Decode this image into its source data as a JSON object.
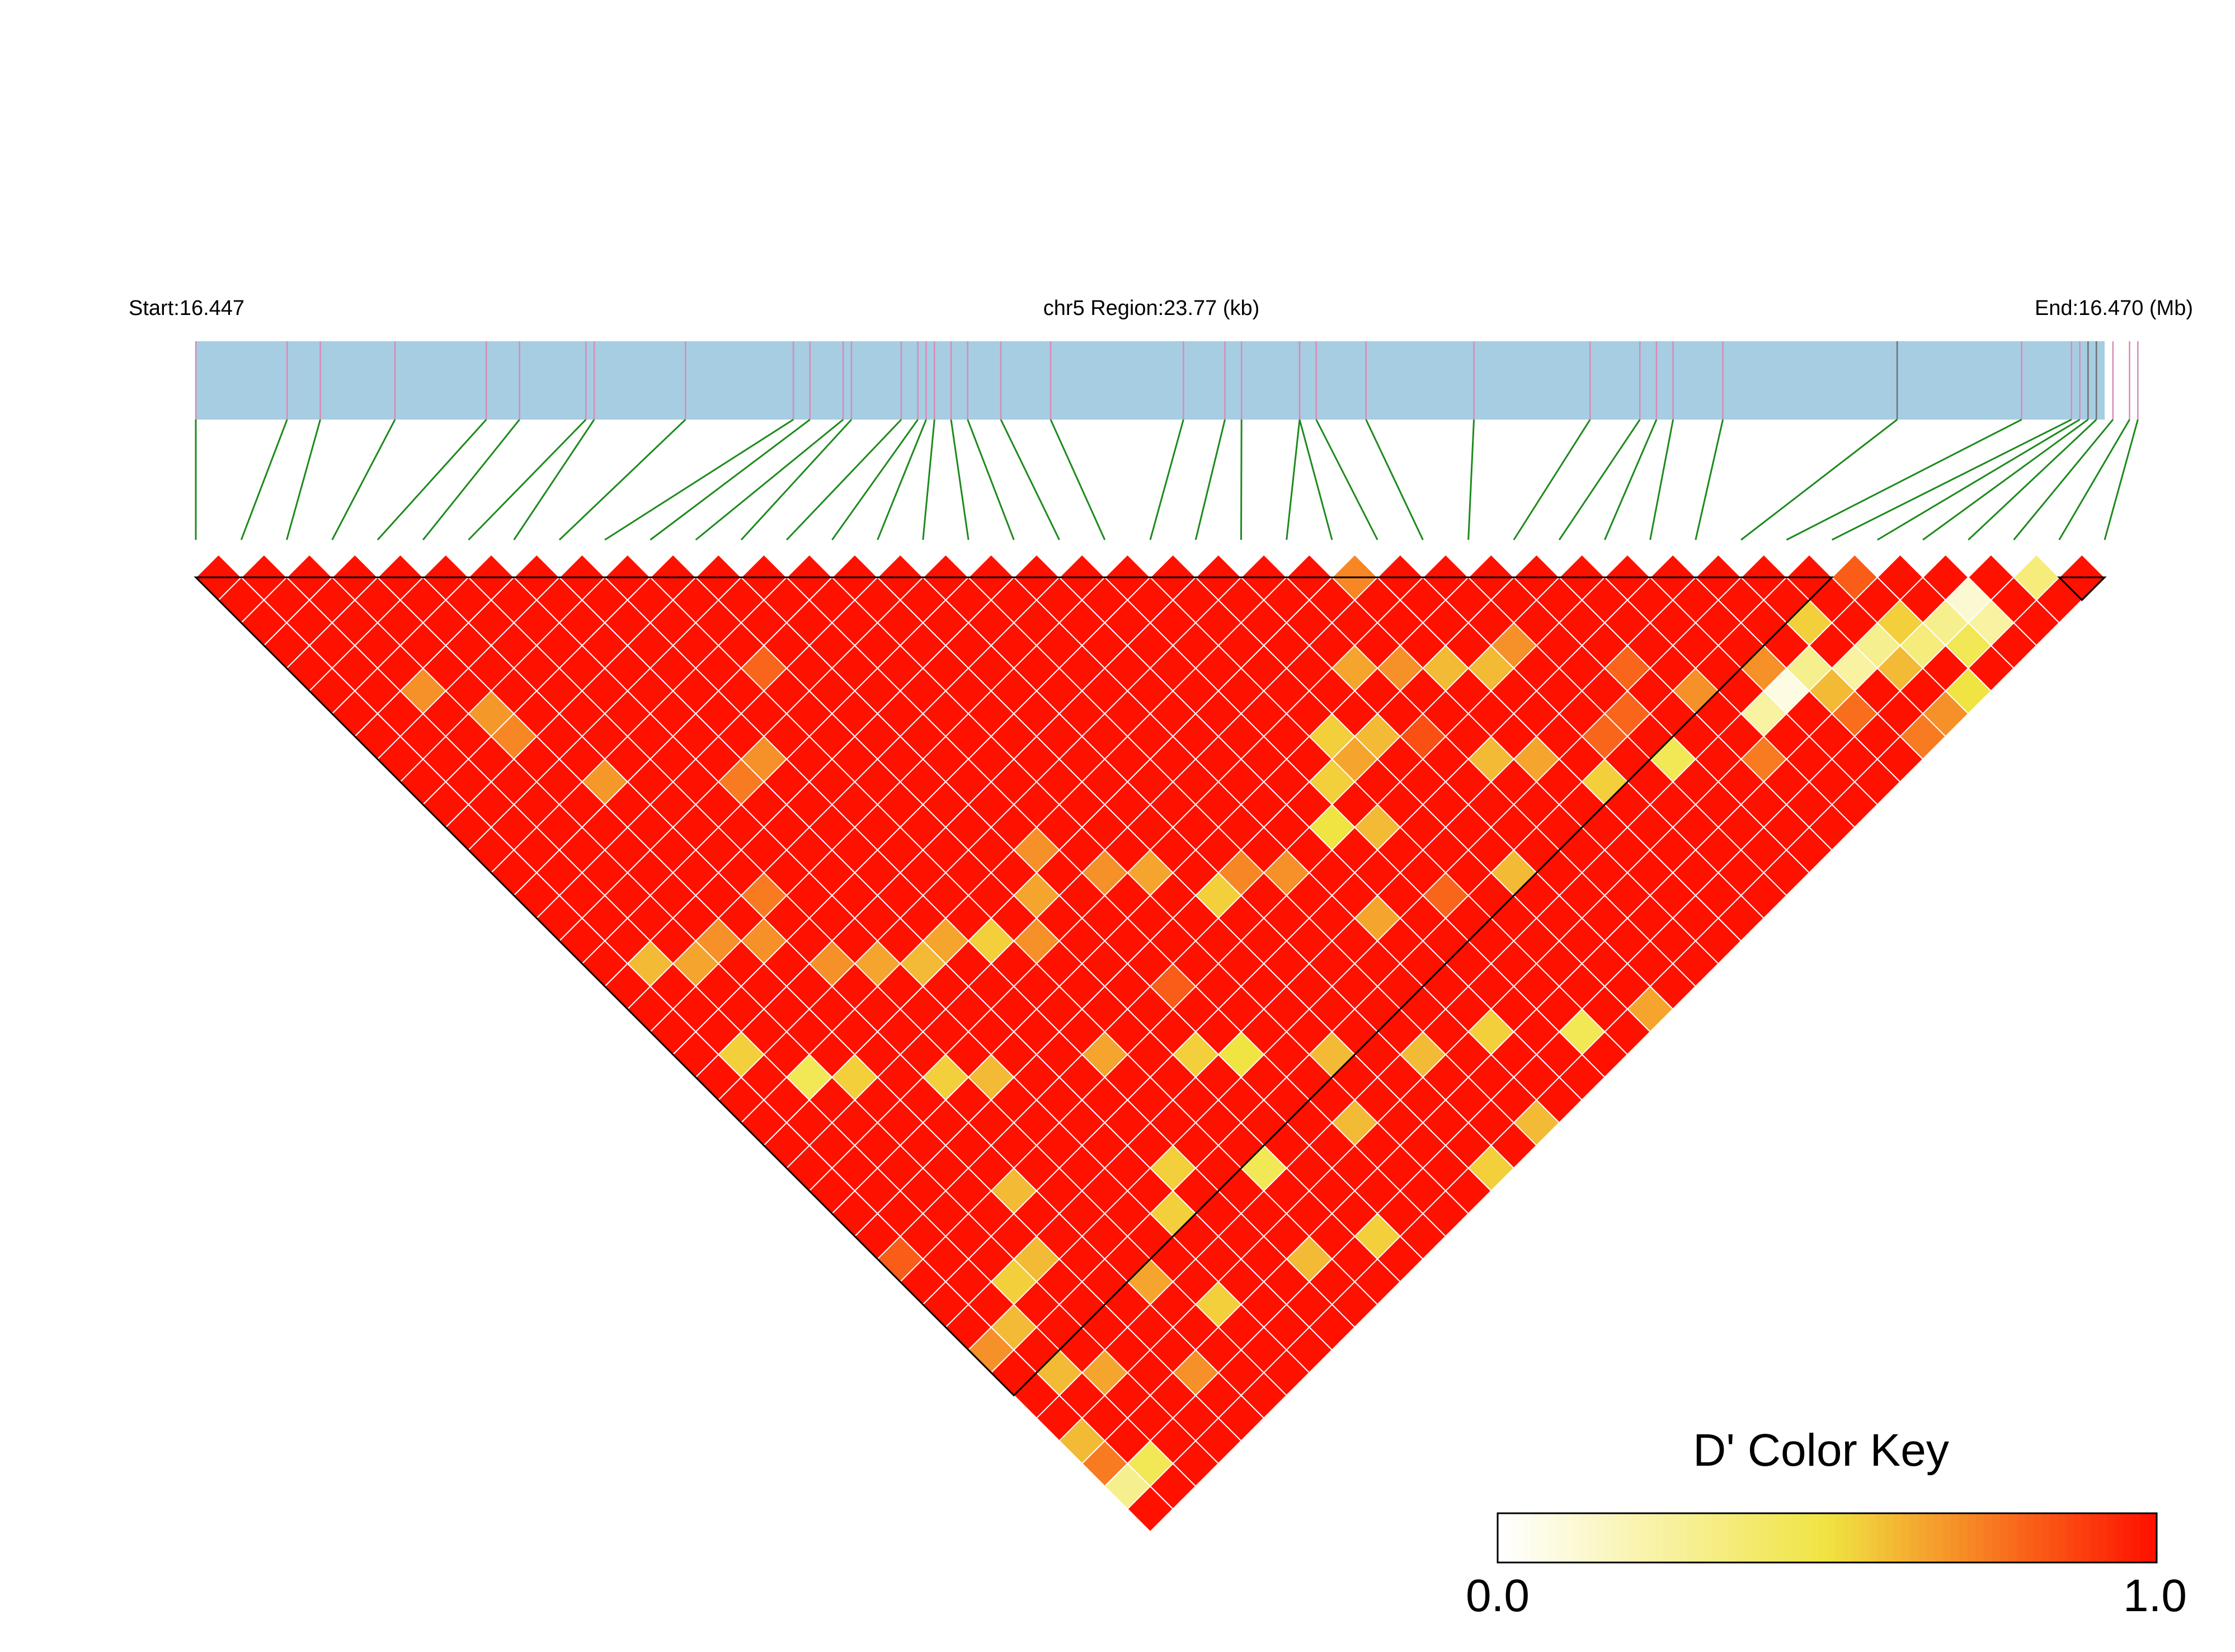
{
  "header": {
    "start_label": "Start:16.447",
    "region_label": "chr5 Region:23.77 (kb)",
    "end_label": "End:16.470 (Mb)"
  },
  "colors": {
    "gene_band": "#a6cde2",
    "snp_tick_pink": "#d98ab6",
    "snp_tick_gray": "#6f6f6f",
    "connector": "#1d8a1d",
    "ld_high": "#ff1100",
    "ld_mid": "#f0e442",
    "ld_low": "#ffffff",
    "grid": "#ffffff",
    "block_outline": "#000000"
  },
  "color_key": {
    "title": "D' Color Key",
    "min_label": "0.0",
    "max_label": "1.0",
    "min": 0.0,
    "max": 1.0
  },
  "chart_data": {
    "type": "heatmap",
    "chart_subtype": "linkage-disequilibrium triangle (D')",
    "chromosome": "chr5",
    "start_mb": 16.447,
    "end_mb": 16.47,
    "region_kb": 23.77,
    "n_snps": 43,
    "snp_positions_mb": [
      16.447,
      16.4481,
      16.4485,
      16.4494,
      16.4505,
      16.4509,
      16.4517,
      16.4518,
      16.4529,
      16.4542,
      16.4544,
      16.4548,
      16.4549,
      16.4555,
      16.4557,
      16.4558,
      16.4559,
      16.4561,
      16.4563,
      16.4567,
      16.4573,
      16.4589,
      16.4594,
      16.4596,
      16.4603,
      16.4603,
      16.4605,
      16.4611,
      16.4624,
      16.4638,
      16.4644,
      16.4646,
      16.4648,
      16.4654,
      16.4675,
      16.469,
      16.4696,
      16.4697,
      16.4698,
      16.4699,
      16.4701,
      16.4703,
      16.4704
    ],
    "gray_tick_snps": [
      35,
      39,
      40
    ],
    "haplotype_blocks": [
      {
        "first_snp": 1,
        "last_snp": 37
      },
      {
        "first_snp": 42,
        "last_snp": 43
      }
    ],
    "metric": "D'",
    "default_dprime": 1.0,
    "dprime_cells": [
      {
        "i": 25,
        "j": 25,
        "d": 0.72
      },
      {
        "i": 36,
        "j": 36,
        "d": 0.82
      },
      {
        "i": 40,
        "j": 40,
        "d": 0.35
      },
      {
        "i": 38,
        "j": 39,
        "d": 0.12
      },
      {
        "i": 37,
        "j": 39,
        "d": 0.3
      },
      {
        "i": 38,
        "j": 40,
        "d": 0.25
      },
      {
        "i": 36,
        "j": 39,
        "d": 0.35
      },
      {
        "i": 37,
        "j": 40,
        "d": 0.45
      },
      {
        "i": 36,
        "j": 38,
        "d": 0.55
      },
      {
        "i": 35,
        "j": 39,
        "d": 0.6
      },
      {
        "i": 35,
        "j": 38,
        "d": 0.3
      },
      {
        "i": 34,
        "j": 38,
        "d": 0.25
      },
      {
        "i": 33,
        "j": 38,
        "d": 0.6
      },
      {
        "i": 32,
        "j": 37,
        "d": 0.08
      },
      {
        "i": 31,
        "j": 37,
        "d": 0.25
      },
      {
        "i": 33,
        "j": 37,
        "d": 0.3
      },
      {
        "i": 32,
        "j": 36,
        "d": 0.7
      },
      {
        "i": 34,
        "j": 36,
        "d": 0.55
      },
      {
        "i": 36,
        "j": 41,
        "d": 0.5
      },
      {
        "i": 37,
        "j": 42,
        "d": 0.7
      },
      {
        "i": 35,
        "j": 41,
        "d": 0.7
      },
      {
        "i": 30,
        "j": 35,
        "d": 0.7
      },
      {
        "i": 28,
        "j": 36,
        "d": 0.45
      },
      {
        "i": 27,
        "j": 30,
        "d": 0.7
      },
      {
        "i": 23,
        "j": 27,
        "d": 0.65
      },
      {
        "i": 24,
        "j": 28,
        "d": 0.7
      },
      {
        "i": 25,
        "j": 29,
        "d": 0.6
      },
      {
        "i": 26,
        "j": 30,
        "d": 0.6
      },
      {
        "i": 21,
        "j": 28,
        "d": 0.55
      },
      {
        "i": 22,
        "j": 29,
        "d": 0.6
      },
      {
        "i": 20,
        "j": 29,
        "d": 0.55
      },
      {
        "i": 21,
        "j": 29,
        "d": 0.65
      },
      {
        "i": 19,
        "j": 30,
        "d": 0.5
      },
      {
        "i": 20,
        "j": 31,
        "d": 0.6
      },
      {
        "i": 24,
        "j": 32,
        "d": 0.6
      },
      {
        "i": 25,
        "j": 33,
        "d": 0.65
      },
      {
        "i": 26,
        "j": 35,
        "d": 0.55
      },
      {
        "i": 22,
        "j": 35,
        "d": 0.6
      },
      {
        "i": 18,
        "j": 33,
        "d": 0.65
      },
      {
        "i": 17,
        "j": 30,
        "d": 0.7
      },
      {
        "i": 16,
        "j": 29,
        "d": 0.72
      },
      {
        "i": 15,
        "j": 29,
        "d": 0.55
      },
      {
        "i": 14,
        "j": 27,
        "d": 0.65
      },
      {
        "i": 12,
        "j": 24,
        "d": 0.7
      },
      {
        "i": 13,
        "j": 26,
        "d": 0.7
      },
      {
        "i": 11,
        "j": 25,
        "d": 0.65
      },
      {
        "i": 9,
        "j": 25,
        "d": 0.55
      },
      {
        "i": 8,
        "j": 24,
        "d": 0.65
      },
      {
        "i": 10,
        "j": 26,
        "d": 0.7
      },
      {
        "i": 7,
        "j": 24,
        "d": 0.6
      },
      {
        "i": 6,
        "j": 23,
        "d": 0.65
      },
      {
        "i": 5,
        "j": 22,
        "d": 0.7
      },
      {
        "i": 4,
        "j": 20,
        "d": 0.7
      },
      {
        "i": 3,
        "j": 19,
        "d": 0.7
      },
      {
        "i": 2,
        "j": 19,
        "d": 0.65
      },
      {
        "i": 1,
        "j": 18,
        "d": 0.6
      },
      {
        "i": 3,
        "j": 25,
        "d": 0.55
      },
      {
        "i": 2,
        "j": 24,
        "d": 0.45
      },
      {
        "i": 1,
        "j": 22,
        "d": 0.55
      },
      {
        "i": 6,
        "j": 28,
        "d": 0.6
      },
      {
        "i": 5,
        "j": 27,
        "d": 0.55
      },
      {
        "i": 9,
        "j": 30,
        "d": 0.65
      },
      {
        "i": 11,
        "j": 32,
        "d": 0.55
      },
      {
        "i": 12,
        "j": 33,
        "d": 0.5
      },
      {
        "i": 14,
        "j": 35,
        "d": 0.6
      },
      {
        "i": 16,
        "j": 37,
        "d": 0.6
      },
      {
        "i": 18,
        "j": 38,
        "d": 0.55
      },
      {
        "i": 20,
        "j": 40,
        "d": 0.45
      },
      {
        "i": 22,
        "j": 41,
        "d": 0.65
      },
      {
        "i": 4,
        "j": 31,
        "d": 0.6
      },
      {
        "i": 8,
        "j": 34,
        "d": 0.55
      },
      {
        "i": 13,
        "j": 37,
        "d": 0.6
      },
      {
        "i": 10,
        "j": 36,
        "d": 0.45
      },
      {
        "i": 7,
        "j": 35,
        "d": 0.55
      },
      {
        "i": 3,
        "j": 33,
        "d": 0.6
      },
      {
        "i": 2,
        "j": 33,
        "d": 0.55
      },
      {
        "i": 1,
        "j": 34,
        "d": 0.6
      },
      {
        "i": 0,
        "j": 34,
        "d": 0.7
      },
      {
        "i": 2,
        "j": 37,
        "d": 0.65
      },
      {
        "i": 1,
        "j": 36,
        "d": 0.6
      },
      {
        "i": 0,
        "j": 38,
        "d": 0.6
      },
      {
        "i": 1,
        "j": 40,
        "d": 0.45
      },
      {
        "i": 0,
        "j": 40,
        "d": 0.3
      },
      {
        "i": 0,
        "j": 39,
        "d": 0.75
      },
      {
        "i": 4,
        "j": 39,
        "d": 0.7
      },
      {
        "i": 6,
        "j": 38,
        "d": 0.55
      },
      {
        "i": 5,
        "j": 36,
        "d": 0.65
      },
      {
        "i": 9,
        "j": 39,
        "d": 0.6
      },
      {
        "i": 11,
        "j": 40,
        "d": 0.55
      },
      {
        "i": 15,
        "j": 41,
        "d": 0.55
      },
      {
        "i": 17,
        "j": 41,
        "d": 0.6
      },
      {
        "i": 19,
        "j": 42,
        "d": 0.5
      },
      {
        "i": 21,
        "j": 42,
        "d": 0.55
      },
      {
        "i": 3,
        "j": 9,
        "d": 0.68
      },
      {
        "i": 4,
        "j": 13,
        "d": 0.68
      },
      {
        "i": 3,
        "j": 10,
        "d": 0.72
      },
      {
        "i": 2,
        "j": 7,
        "d": 0.7
      },
      {
        "i": 8,
        "j": 16,
        "d": 0.7
      },
      {
        "i": 7,
        "j": 16,
        "d": 0.75
      },
      {
        "i": 10,
        "j": 14,
        "d": 0.8
      },
      {
        "i": 5,
        "j": 19,
        "d": 0.75
      },
      {
        "i": 27,
        "j": 34,
        "d": 0.8
      },
      {
        "i": 28,
        "j": 34,
        "d": 0.8
      },
      {
        "i": 29,
        "j": 33,
        "d": 0.8
      },
      {
        "i": 20,
        "j": 34,
        "d": 0.8
      },
      {
        "i": 30,
        "j": 38,
        "d": 0.75
      },
      {
        "i": 33,
        "j": 39,
        "d": 0.78
      },
      {
        "i": 34,
        "j": 41,
        "d": 0.75
      },
      {
        "i": 23,
        "j": 30,
        "d": 0.85
      },
      {
        "i": 12,
        "j": 30,
        "d": 0.82
      },
      {
        "i": 0,
        "j": 30,
        "d": 0.82
      }
    ]
  }
}
